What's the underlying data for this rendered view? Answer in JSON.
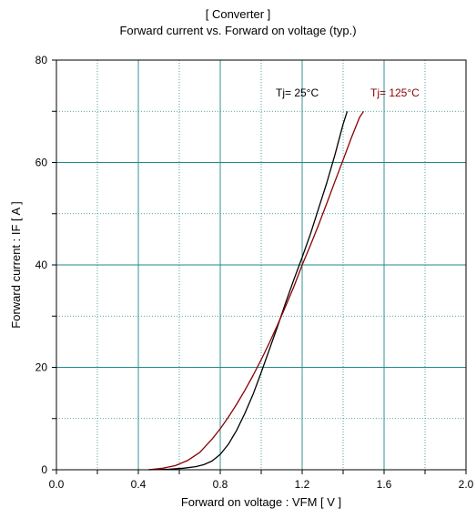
{
  "chart_data": {
    "type": "line",
    "title": "[ Converter ]",
    "subtitle": "Forward current  vs.  Forward on voltage  (typ.)",
    "xlabel": "Forward on voltage  :  VFM  [ V ]",
    "ylabel": "Forward current  :  IF  [ A ]",
    "xlim": [
      0.0,
      2.0
    ],
    "ylim": [
      0,
      80
    ],
    "xticks": [
      "0.0",
      "0.4",
      "0.8",
      "1.2",
      "1.6",
      "2.0"
    ],
    "yticks": [
      "0",
      "20",
      "40",
      "60",
      "80"
    ],
    "grid": true,
    "series": [
      {
        "name": "Tj= 25°C",
        "color": "#000000",
        "x": [
          0.45,
          0.55,
          0.62,
          0.68,
          0.72,
          0.76,
          0.8,
          0.84,
          0.88,
          0.92,
          0.96,
          1.0,
          1.04,
          1.08,
          1.12,
          1.16,
          1.2,
          1.24,
          1.28,
          1.32,
          1.36,
          1.4,
          1.42
        ],
        "y": [
          0.0,
          0.1,
          0.3,
          0.6,
          1.0,
          1.7,
          3.0,
          5.0,
          7.7,
          11.0,
          14.7,
          19.0,
          23.5,
          28.0,
          32.7,
          37.2,
          41.5,
          46.0,
          51.0,
          56.0,
          61.5,
          67.5,
          70.0
        ]
      },
      {
        "name": "Tj= 125°C",
        "color": "#8b0000",
        "x": [
          0.45,
          0.52,
          0.58,
          0.64,
          0.7,
          0.76,
          0.8,
          0.84,
          0.88,
          0.92,
          0.96,
          1.0,
          1.04,
          1.08,
          1.12,
          1.16,
          1.2,
          1.24,
          1.28,
          1.32,
          1.36,
          1.4,
          1.44,
          1.48,
          1.5
        ],
        "y": [
          0.0,
          0.3,
          0.8,
          1.8,
          3.4,
          6.0,
          8.0,
          10.3,
          12.8,
          15.5,
          18.4,
          21.5,
          24.8,
          28.3,
          32.0,
          35.8,
          40.0,
          43.8,
          47.8,
          52.0,
          56.3,
          60.5,
          64.8,
          68.8,
          70.0
        ]
      }
    ]
  }
}
